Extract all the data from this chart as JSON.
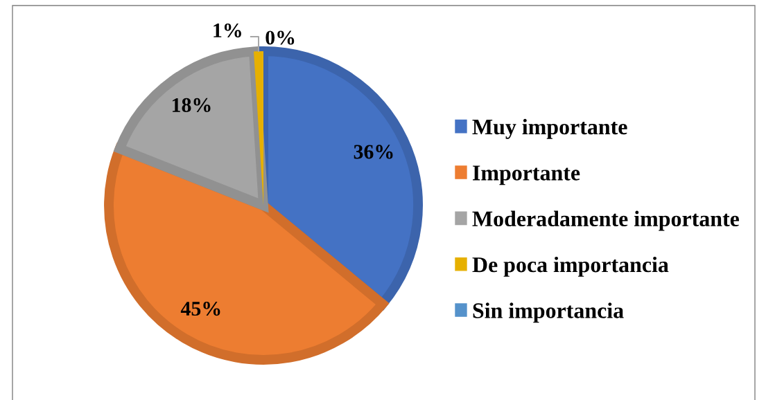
{
  "chart_data": {
    "type": "pie",
    "categories": [
      "Muy importante",
      "Importante",
      "Moderadamente importante",
      "De poca importancia",
      "Sin importancia"
    ],
    "values": [
      36,
      45,
      18,
      1,
      0
    ],
    "colors": [
      "#4472c4",
      "#ed7d31",
      "#a5a5a5",
      "#e6b000",
      "#5592cb"
    ],
    "value_labels": [
      "36%",
      "45%",
      "18%",
      "1%",
      "0%"
    ],
    "legend": "right"
  }
}
